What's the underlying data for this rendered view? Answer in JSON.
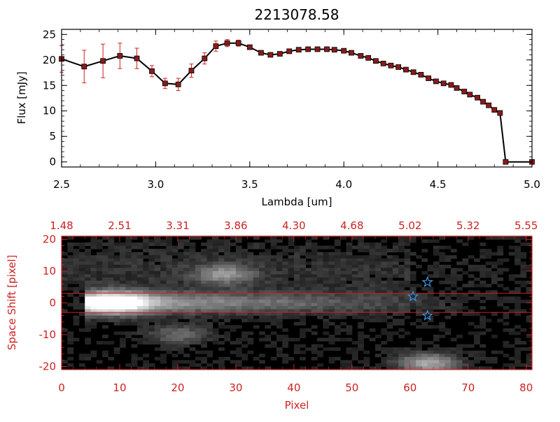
{
  "chart_data": [
    {
      "type": "line",
      "title": "2213078.58",
      "xlabel": "Lambda [um]",
      "ylabel": "Flux [mJy]",
      "xlim": [
        2.5,
        5.0
      ],
      "ylim": [
        -1,
        26
      ],
      "xticks": [
        "2.5",
        "3.0",
        "3.5",
        "4.0",
        "4.5",
        "5.0"
      ],
      "yticks": [
        "0",
        "5",
        "10",
        "15",
        "20",
        "25"
      ],
      "line_color": "#000000",
      "marker_color": "#8b1a1a",
      "errorbar_color": "#cc2222",
      "x": [
        2.5,
        2.62,
        2.72,
        2.81,
        2.9,
        2.98,
        3.05,
        3.12,
        3.19,
        3.26,
        3.32,
        3.38,
        3.44,
        3.5,
        3.56,
        3.61,
        3.66,
        3.71,
        3.76,
        3.81,
        3.86,
        3.91,
        3.95,
        4.0,
        4.04,
        4.09,
        4.13,
        4.17,
        4.21,
        4.25,
        4.29,
        4.33,
        4.37,
        4.41,
        4.45,
        4.49,
        4.53,
        4.57,
        4.6,
        4.64,
        4.67,
        4.71,
        4.74,
        4.77,
        4.8,
        4.83,
        4.86,
        5.0
      ],
      "y": [
        20.2,
        18.7,
        19.8,
        20.8,
        20.3,
        17.8,
        15.4,
        15.2,
        17.9,
        20.3,
        22.7,
        23.3,
        23.3,
        22.5,
        21.4,
        21.0,
        21.2,
        21.7,
        22.0,
        22.1,
        22.1,
        22.1,
        22.0,
        21.8,
        21.4,
        20.8,
        20.4,
        19.8,
        19.3,
        18.9,
        18.6,
        18.1,
        17.6,
        17.1,
        16.4,
        15.8,
        15.4,
        15.1,
        14.5,
        13.8,
        13.2,
        12.6,
        11.8,
        11.1,
        10.2,
        9.6,
        0.0,
        0.0
      ],
      "err": [
        2.6,
        3.2,
        3.3,
        2.5,
        2.0,
        1.1,
        1.0,
        1.2,
        1.3,
        1.1,
        1.0,
        0.7,
        0.6,
        0.4,
        0.4,
        0.4,
        0.4,
        0.4,
        0.4,
        0.4,
        0.4,
        0.4,
        0.4,
        0.4,
        0.4,
        0.4,
        0.4,
        0.4,
        0.4,
        0.4,
        0.4,
        0.4,
        0.4,
        0.4,
        0.4,
        0.4,
        0.4,
        0.4,
        0.4,
        0.4,
        0.4,
        0.4,
        0.4,
        0.4,
        0.4,
        0.4,
        0.0,
        0.0
      ]
    },
    {
      "type": "heatmap",
      "xlabel": "Pixel",
      "ylabel": "Space Shift [pixel]",
      "xlim": [
        0,
        81
      ],
      "ylim": [
        -21,
        21
      ],
      "xticks": [
        "0",
        "10",
        "20",
        "30",
        "40",
        "50",
        "60",
        "70",
        "80"
      ],
      "yticks": [
        "-20",
        "-10",
        "0",
        "10",
        "20"
      ],
      "top_tick_labels": [
        "1.48",
        "2.51",
        "3.31",
        "3.86",
        "4.30",
        "4.68",
        "5.02",
        "5.32",
        "5.55"
      ],
      "axis_color": "#cc2222",
      "reference_lines_y": [
        3,
        -3
      ],
      "reference_line_color": "#cc2222",
      "star_marker_color": "#3a8fd8",
      "stars": [
        {
          "x": 63,
          "y": 6.5
        },
        {
          "x": 60.5,
          "y": 2
        },
        {
          "x": 63,
          "y": -4
        }
      ],
      "blobs": [
        {
          "x": 9,
          "y": 0,
          "amplitude": 1.0
        },
        {
          "x": 28,
          "y": 9,
          "amplitude": 0.45
        },
        {
          "x": 20,
          "y": -10,
          "amplitude": 0.3
        },
        {
          "x": 63,
          "y": -19,
          "amplitude": 0.6
        }
      ]
    }
  ]
}
